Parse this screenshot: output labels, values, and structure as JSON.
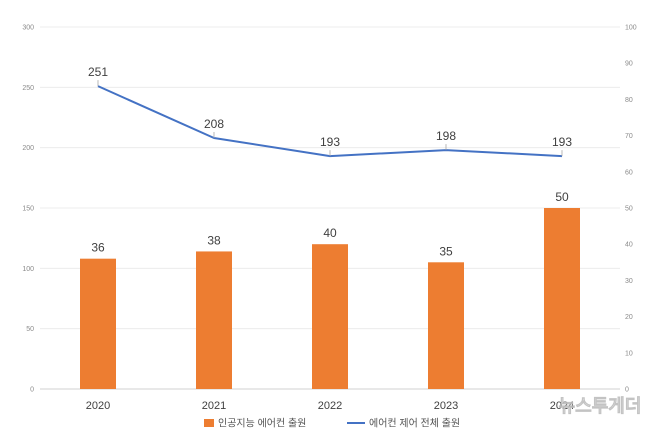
{
  "chart_data": {
    "type": "bar",
    "categories": [
      "2020",
      "2021",
      "2022",
      "2023",
      "2024"
    ],
    "series": [
      {
        "name": "인공지능 에어컨 출원",
        "type": "bar",
        "axis": "right",
        "color": "#ED7D31",
        "values": [
          36,
          38,
          40,
          35,
          50
        ]
      },
      {
        "name": "에어컨 제어 전체 출원",
        "type": "line",
        "axis": "left",
        "color": "#4472C4",
        "values": [
          251,
          208,
          193,
          198,
          193
        ]
      }
    ],
    "y_left": {
      "min": 0,
      "max": 300,
      "ticks": [
        0,
        50,
        100,
        150,
        200,
        250,
        300
      ]
    },
    "y_right": {
      "min": 0,
      "max": 100,
      "ticks": [
        0,
        10,
        20,
        30,
        40,
        50,
        60,
        70,
        80,
        90,
        100
      ]
    },
    "grid": true,
    "legend_position": "bottom",
    "title": "",
    "xlabel": "",
    "ylabel": ""
  },
  "watermark": "뉴스투게더"
}
